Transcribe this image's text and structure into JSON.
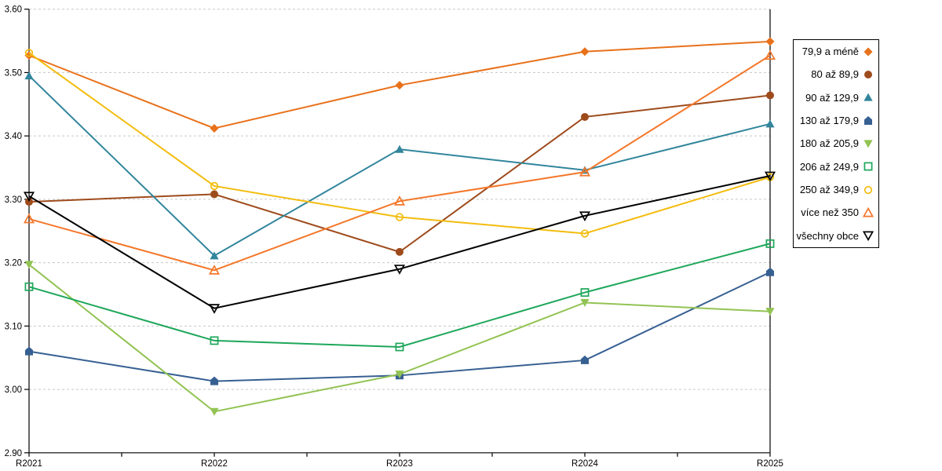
{
  "chart_data": {
    "type": "line",
    "title": "",
    "xlabel": "",
    "ylabel": "",
    "categories": [
      "R2021",
      "R2022",
      "R2023",
      "R2024",
      "R2025"
    ],
    "series": [
      {
        "name": "79,9 a méně",
        "marker": "diamond",
        "marker_fill": "solid",
        "color": "#E8711A",
        "values": [
          3.527,
          3.412,
          3.48,
          3.533,
          3.549
        ]
      },
      {
        "name": "80 až 89,9",
        "marker": "circle",
        "marker_fill": "solid",
        "color": "#9E4B1C",
        "values": [
          3.296,
          3.308,
          3.217,
          3.43,
          3.464
        ]
      },
      {
        "name": "90 až 129,9",
        "marker": "triangle-up",
        "marker_fill": "solid",
        "color": "#31859C",
        "values": [
          3.495,
          3.211,
          3.379,
          3.346,
          3.419
        ]
      },
      {
        "name": "130 až 179,9",
        "marker": "pentagon",
        "marker_fill": "solid",
        "color": "#376092",
        "values": [
          3.06,
          3.013,
          3.022,
          3.046,
          3.185
        ]
      },
      {
        "name": "180 až 205,9",
        "marker": "triangle-down",
        "marker_fill": "solid",
        "color": "#92C353",
        "values": [
          3.197,
          2.965,
          3.024,
          3.137,
          3.123
        ]
      },
      {
        "name": "206 až 249,9",
        "marker": "square",
        "marker_fill": "open",
        "color": "#1EA75A",
        "values": [
          3.162,
          3.077,
          3.067,
          3.153,
          3.23
        ]
      },
      {
        "name": "250 až 349,9",
        "marker": "circle",
        "marker_fill": "open",
        "color": "#F3BC0E",
        "values": [
          3.531,
          3.321,
          3.272,
          3.246,
          3.335
        ]
      },
      {
        "name": "více než 350",
        "marker": "triangle-up",
        "marker_fill": "open",
        "color": "#F4772A",
        "values": [
          3.269,
          3.188,
          3.297,
          3.343,
          3.527
        ]
      },
      {
        "name": "všechny obce",
        "marker": "triangle-down",
        "marker_fill": "open",
        "color": "#000000",
        "values": [
          3.305,
          3.128,
          3.19,
          3.274,
          3.337
        ]
      }
    ],
    "ylim": [
      2.9,
      3.6
    ],
    "ytick_step": 0.1,
    "ytick_labels": [
      "3.60",
      "3.50",
      "3.40",
      "3.30",
      "3.20",
      "3.10",
      "3.00",
      "2.90"
    ],
    "grid": "horizontal dashed",
    "legend_position": "right"
  },
  "colors": {
    "background": "#FFFFFF",
    "gridline": "#C6C6C6",
    "axis": "#000000"
  }
}
